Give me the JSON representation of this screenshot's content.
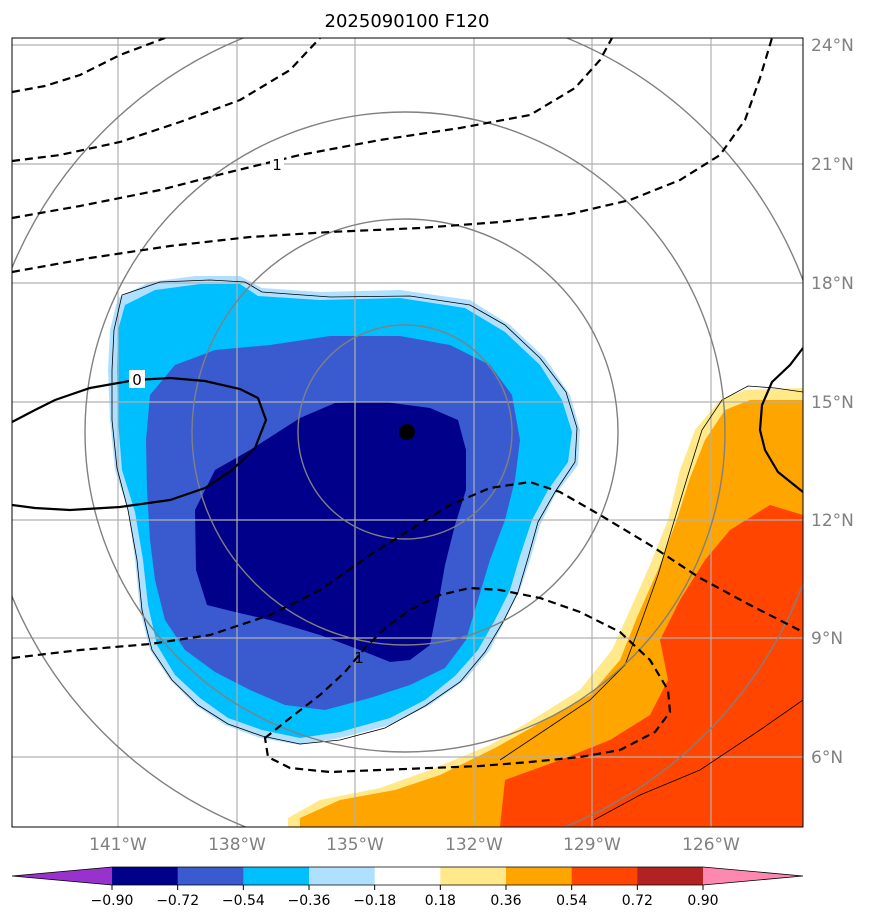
{
  "title": "2025090100 F120",
  "map": {
    "lat_ticks": [
      "24°N",
      "21°N",
      "18°N",
      "15°N",
      "12°N",
      "9°N",
      "6°N"
    ],
    "lon_ticks": [
      "141°W",
      "138°W",
      "135°W",
      "132°W",
      "129°W",
      "126°W"
    ],
    "center_marker": {
      "lat": 14.3,
      "lon": 133.7
    },
    "contour_labels": [
      "1",
      "0",
      "1"
    ],
    "colors": {
      "shade_neg_090": "#00008b",
      "shade_neg_072": "#3a5bd0",
      "shade_neg_054": "#00bfff",
      "shade_neg_036": "#b0e0ff",
      "shade_pos_036": "#ffe98a",
      "shade_pos_054": "#ffa500",
      "shade_pos_072": "#ff4500",
      "grid": "#b0b0b0",
      "range_rings": "#808080"
    }
  },
  "colorbar": {
    "labels": [
      "−0.90",
      "−0.72",
      "−0.54",
      "−0.36",
      "−0.18",
      "0.18",
      "0.36",
      "0.54",
      "0.72",
      "0.90"
    ],
    "colors": [
      "#9932cc",
      "#00008b",
      "#3a5bd0",
      "#00bfff",
      "#b0e0ff",
      "#ffffff",
      "#ffe98a",
      "#ffa500",
      "#ff4500",
      "#b22222",
      "#ff88b0"
    ]
  }
}
